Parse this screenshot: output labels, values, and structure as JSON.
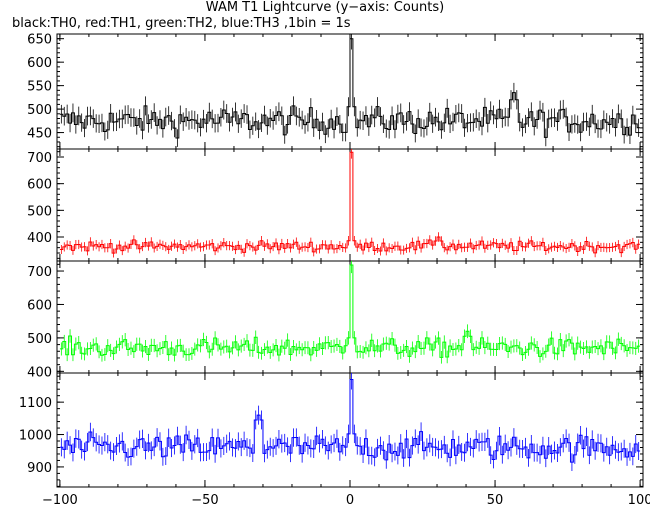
{
  "title": "WAM T1 Lightcurve (y−axis: Counts)",
  "subtitle": "black:TH0, red:TH1, green:TH2, blue:TH3 ,1bin = 1s",
  "chart_data": {
    "type": "line",
    "x": {
      "range": [
        -101,
        101
      ],
      "ticks": [
        -100,
        -50,
        0,
        50,
        100
      ],
      "bin_seconds": 1
    },
    "panels": [
      {
        "channel": "TH0",
        "color": "#000000",
        "ylim": [
          415,
          660
        ],
        "yticks": [
          450,
          500,
          550,
          600,
          650
        ],
        "baseline": 475,
        "noise": 20,
        "spike": 650,
        "bump_at": 56,
        "bump": 535
      },
      {
        "channel": "TH1",
        "color": "#ff0000",
        "ylim": [
          310,
          730
        ],
        "yticks": [
          400,
          500,
          600,
          700
        ],
        "baseline": 365,
        "noise": 14,
        "spike": 718,
        "bump_at": 30,
        "bump": 400
      },
      {
        "channel": "TH2",
        "color": "#00ff00",
        "ylim": [
          395,
          730
        ],
        "yticks": [
          400,
          500,
          600,
          700
        ],
        "baseline": 470,
        "noise": 20,
        "spike": 718,
        "bump_at": 40,
        "bump": 520
      },
      {
        "channel": "TH3",
        "color": "#0000ff",
        "ylim": [
          838,
          1190
        ],
        "yticks": [
          900,
          1000,
          1100
        ],
        "baseline": 960,
        "noise": 28,
        "spike": 1170,
        "bump_at": -32,
        "bump": 1060
      }
    ]
  }
}
